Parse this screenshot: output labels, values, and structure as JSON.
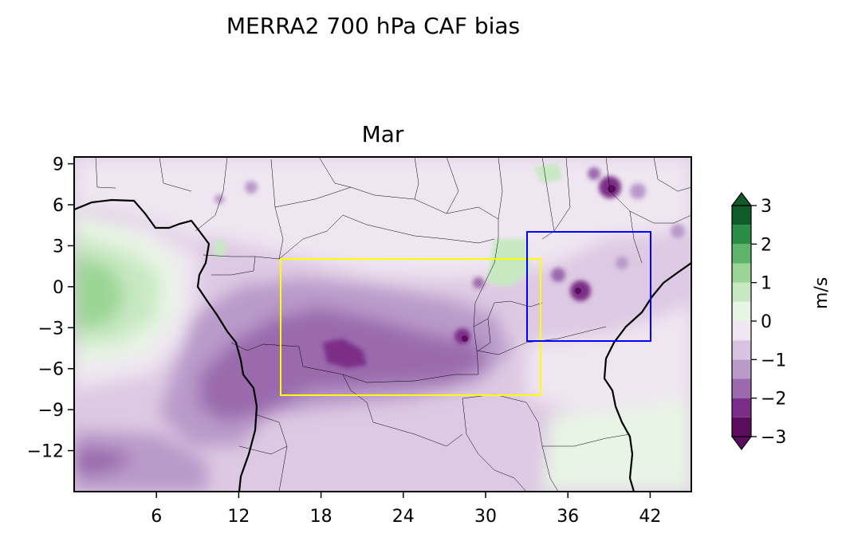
{
  "figure": {
    "suptitle": "MERRA2 700 hPa CAF bias",
    "panel_title": "Mar"
  },
  "chart_data": {
    "type": "heatmap",
    "title": "MERRA2 700 hPa CAF bias",
    "subtitle": "Mar",
    "xlabel": "",
    "ylabel": "",
    "xlim": [
      0,
      45
    ],
    "ylim": [
      -15,
      9.5
    ],
    "x_ticks": [
      6,
      12,
      18,
      24,
      30,
      36,
      42
    ],
    "x_tick_labels": [
      "6",
      "12",
      "18",
      "24",
      "30",
      "36",
      "42"
    ],
    "y_ticks": [
      9,
      6,
      3,
      0,
      -3,
      -6,
      -9,
      -12
    ],
    "y_tick_labels": [
      "9",
      "6",
      "3",
      "0",
      "−3",
      "−6",
      "−9",
      "−12"
    ],
    "colorbar": {
      "label": "m/s",
      "levels": [
        -3,
        -2.5,
        -2,
        -1.5,
        -1,
        -0.5,
        0,
        0.5,
        1,
        1.5,
        2,
        2.5,
        3
      ],
      "tick_values": [
        3,
        2,
        1,
        0,
        -1,
        -2,
        -3
      ],
      "tick_labels": [
        "3",
        "2",
        "1",
        "0",
        "−1",
        "−2",
        "−3"
      ],
      "extend": "both",
      "colors": [
        "#5a0d5e",
        "#7b2e87",
        "#9a6aad",
        "#b99ac9",
        "#d8c4e1",
        "#efe6f1",
        "#e8f4e5",
        "#c8e8c2",
        "#9bd595",
        "#5fb36a",
        "#2b8c43",
        "#0f5c28"
      ]
    },
    "regions": [
      {
        "color": "#ffff00",
        "lon": [
          15,
          34
        ],
        "lat": [
          -8,
          2
        ]
      },
      {
        "color": "#0000ff",
        "lon": [
          33,
          42
        ],
        "lat": [
          -4,
          4
        ]
      }
    ],
    "coastline_color": "#000000",
    "border_color": "#000000",
    "grid": false
  }
}
